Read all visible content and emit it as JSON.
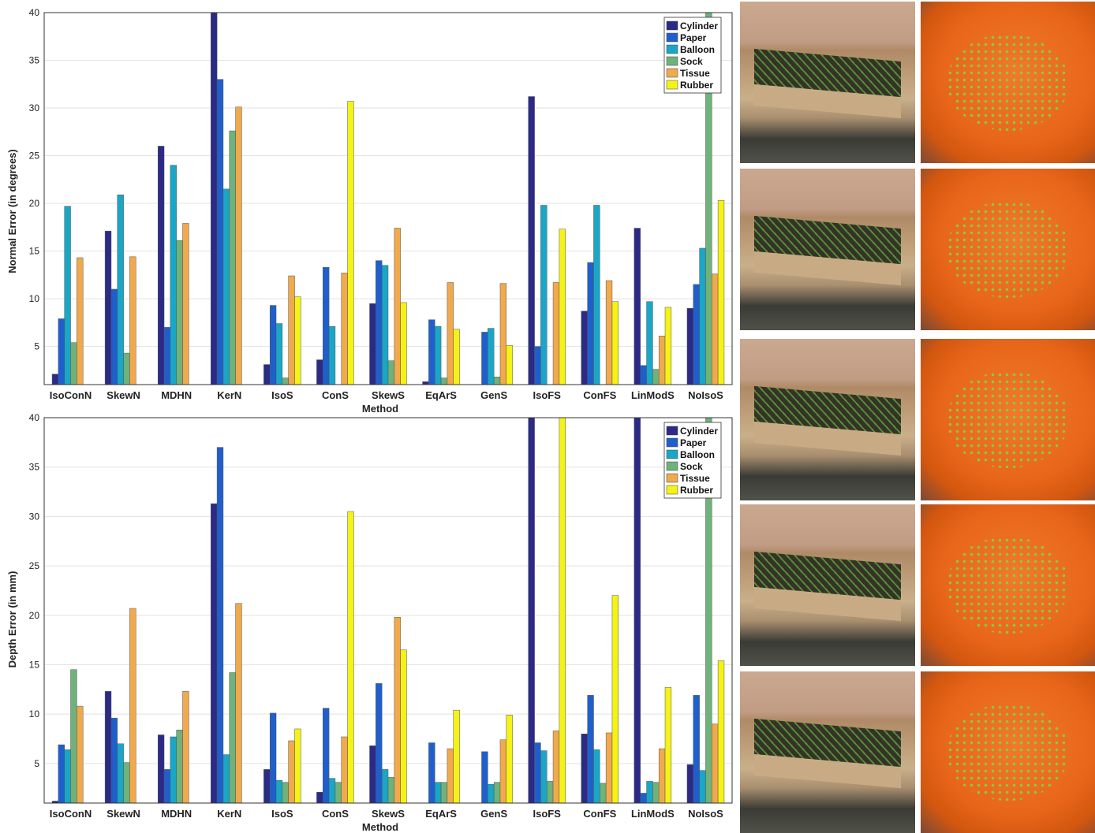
{
  "chart_data": [
    {
      "type": "bar",
      "categories": [
        "IsoConN",
        "SkewN",
        "MDHN",
        "KerN",
        "IsoS",
        "ConS",
        "SkewS",
        "EqArS",
        "GenS",
        "IsoFS",
        "ConFS",
        "LinModS",
        "NoIsoS"
      ],
      "ylim": [
        1,
        40
      ],
      "yticks": [
        5,
        10,
        15,
        20,
        25,
        30,
        35,
        40
      ],
      "xlabel": "Method",
      "ylabel": "Normal Error (in degrees)",
      "legend_position": "top-right",
      "grid": true,
      "series": [
        {
          "name": "Cylinder",
          "color": "#2b2a86",
          "values": [
            2.1,
            17.1,
            26.0,
            40.0,
            3.1,
            3.6,
            9.5,
            1.3,
            0,
            31.2,
            8.7,
            17.4,
            9.0
          ]
        },
        {
          "name": "Paper",
          "color": "#1f5fcc",
          "values": [
            7.9,
            11.0,
            7.0,
            33.0,
            9.3,
            13.3,
            14.0,
            7.8,
            6.5,
            5.0,
            13.8,
            3.0,
            11.5
          ]
        },
        {
          "name": "Balloon",
          "color": "#1aa6c6",
          "values": [
            19.7,
            20.9,
            24.0,
            21.5,
            7.4,
            7.1,
            13.5,
            7.1,
            6.9,
            19.8,
            19.8,
            9.7,
            15.3
          ]
        },
        {
          "name": "Sock",
          "color": "#6fb27a",
          "values": [
            5.4,
            4.3,
            16.1,
            27.6,
            1.7,
            0,
            3.5,
            1.7,
            1.8,
            0,
            0,
            2.6,
            40.0
          ]
        },
        {
          "name": "Tissue",
          "color": "#f0a94c",
          "values": [
            14.3,
            14.4,
            17.9,
            30.1,
            12.4,
            12.7,
            17.4,
            11.7,
            11.6,
            11.7,
            11.9,
            6.1,
            12.6
          ]
        },
        {
          "name": "Rubber",
          "color": "#f4f216",
          "values": [
            0,
            0,
            0,
            0,
            10.2,
            30.7,
            9.6,
            6.8,
            5.1,
            17.3,
            9.7,
            9.1,
            20.3
          ]
        }
      ]
    },
    {
      "type": "bar",
      "categories": [
        "IsoConN",
        "SkewN",
        "MDHN",
        "KerN",
        "IsoS",
        "ConS",
        "SkewS",
        "EqArS",
        "GenS",
        "IsoFS",
        "ConFS",
        "LinModS",
        "NoIsoS"
      ],
      "ylim": [
        1,
        40
      ],
      "yticks": [
        5,
        10,
        15,
        20,
        25,
        30,
        35,
        40
      ],
      "xlabel": "Method",
      "ylabel": "Depth Error (in mm)",
      "legend_position": "top-right",
      "grid": true,
      "series": [
        {
          "name": "Cylinder",
          "color": "#2b2a86",
          "values": [
            1.2,
            12.3,
            7.9,
            31.3,
            4.4,
            2.1,
            6.8,
            0,
            0,
            40.0,
            8.0,
            40.0,
            4.9
          ]
        },
        {
          "name": "Paper",
          "color": "#1f5fcc",
          "values": [
            6.9,
            9.6,
            4.4,
            37.0,
            10.1,
            10.6,
            13.1,
            7.1,
            6.2,
            7.1,
            11.9,
            2.0,
            11.9
          ]
        },
        {
          "name": "Balloon",
          "color": "#1aa6c6",
          "values": [
            6.4,
            7.0,
            7.7,
            5.9,
            3.3,
            3.5,
            4.4,
            3.1,
            2.9,
            6.3,
            6.4,
            3.2,
            4.3
          ]
        },
        {
          "name": "Sock",
          "color": "#6fb27a",
          "values": [
            14.5,
            5.1,
            8.4,
            14.2,
            3.1,
            3.1,
            3.6,
            3.1,
            3.1,
            3.2,
            3.0,
            3.1,
            40.0
          ]
        },
        {
          "name": "Tissue",
          "color": "#f0a94c",
          "values": [
            10.8,
            20.7,
            12.3,
            21.2,
            7.3,
            7.7,
            19.8,
            6.5,
            7.4,
            8.3,
            8.1,
            6.5,
            9.0
          ]
        },
        {
          "name": "Rubber",
          "color": "#f4f216",
          "values": [
            0,
            0,
            0,
            0,
            8.5,
            30.5,
            16.5,
            10.4,
            9.9,
            40.0,
            22.0,
            12.7,
            15.4
          ]
        }
      ]
    }
  ],
  "photos": [
    {
      "kind": "box"
    },
    {
      "kind": "balloon"
    },
    {
      "kind": "box"
    },
    {
      "kind": "balloon"
    },
    {
      "kind": "box"
    },
    {
      "kind": "balloon"
    },
    {
      "kind": "box"
    },
    {
      "kind": "balloon"
    },
    {
      "kind": "box"
    },
    {
      "kind": "balloon"
    }
  ]
}
